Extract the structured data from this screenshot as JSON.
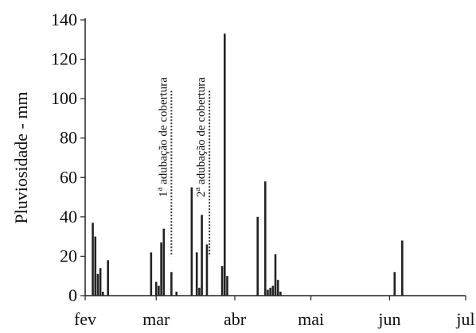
{
  "chart_data": {
    "type": "bar",
    "ylabel": "Pluviosidade - mm",
    "xlabel": "",
    "ylim": [
      0,
      140
    ],
    "yticks": [
      0,
      20,
      40,
      60,
      80,
      100,
      120,
      140
    ],
    "xlim": [
      0,
      150
    ],
    "x_ticks": [
      {
        "label": "fev",
        "x": 0
      },
      {
        "label": "mar",
        "x": 28
      },
      {
        "label": "abr",
        "x": 59
      },
      {
        "label": "mai",
        "x": 89
      },
      {
        "label": "jun",
        "x": 120
      },
      {
        "label": "jul",
        "x": 150
      }
    ],
    "grid": false,
    "series": [
      {
        "x": [
          3,
          4,
          5,
          6,
          7,
          9,
          26,
          28,
          29,
          30,
          31,
          34,
          36,
          42,
          44,
          45,
          46,
          48,
          54,
          55,
          56,
          68,
          71,
          72,
          73,
          74,
          75,
          76,
          77,
          122,
          125
        ],
        "values": [
          37,
          30,
          11,
          14,
          2,
          18,
          22,
          7,
          5,
          27,
          34,
          12,
          2,
          55,
          22,
          4,
          41,
          26,
          15,
          133,
          10,
          40,
          58,
          3,
          4,
          5,
          21,
          8,
          2,
          12,
          28
        ]
      }
    ],
    "annotations": [
      {
        "base": "1",
        "sup": "a",
        "text": " adubação de cobertura",
        "x": 34,
        "y_top": 104,
        "y_bottom": 20
      },
      {
        "base": "2",
        "sup": "a",
        "text": " adubação de cobertura",
        "x": 49,
        "y_top": 104,
        "y_bottom": 20
      }
    ]
  }
}
